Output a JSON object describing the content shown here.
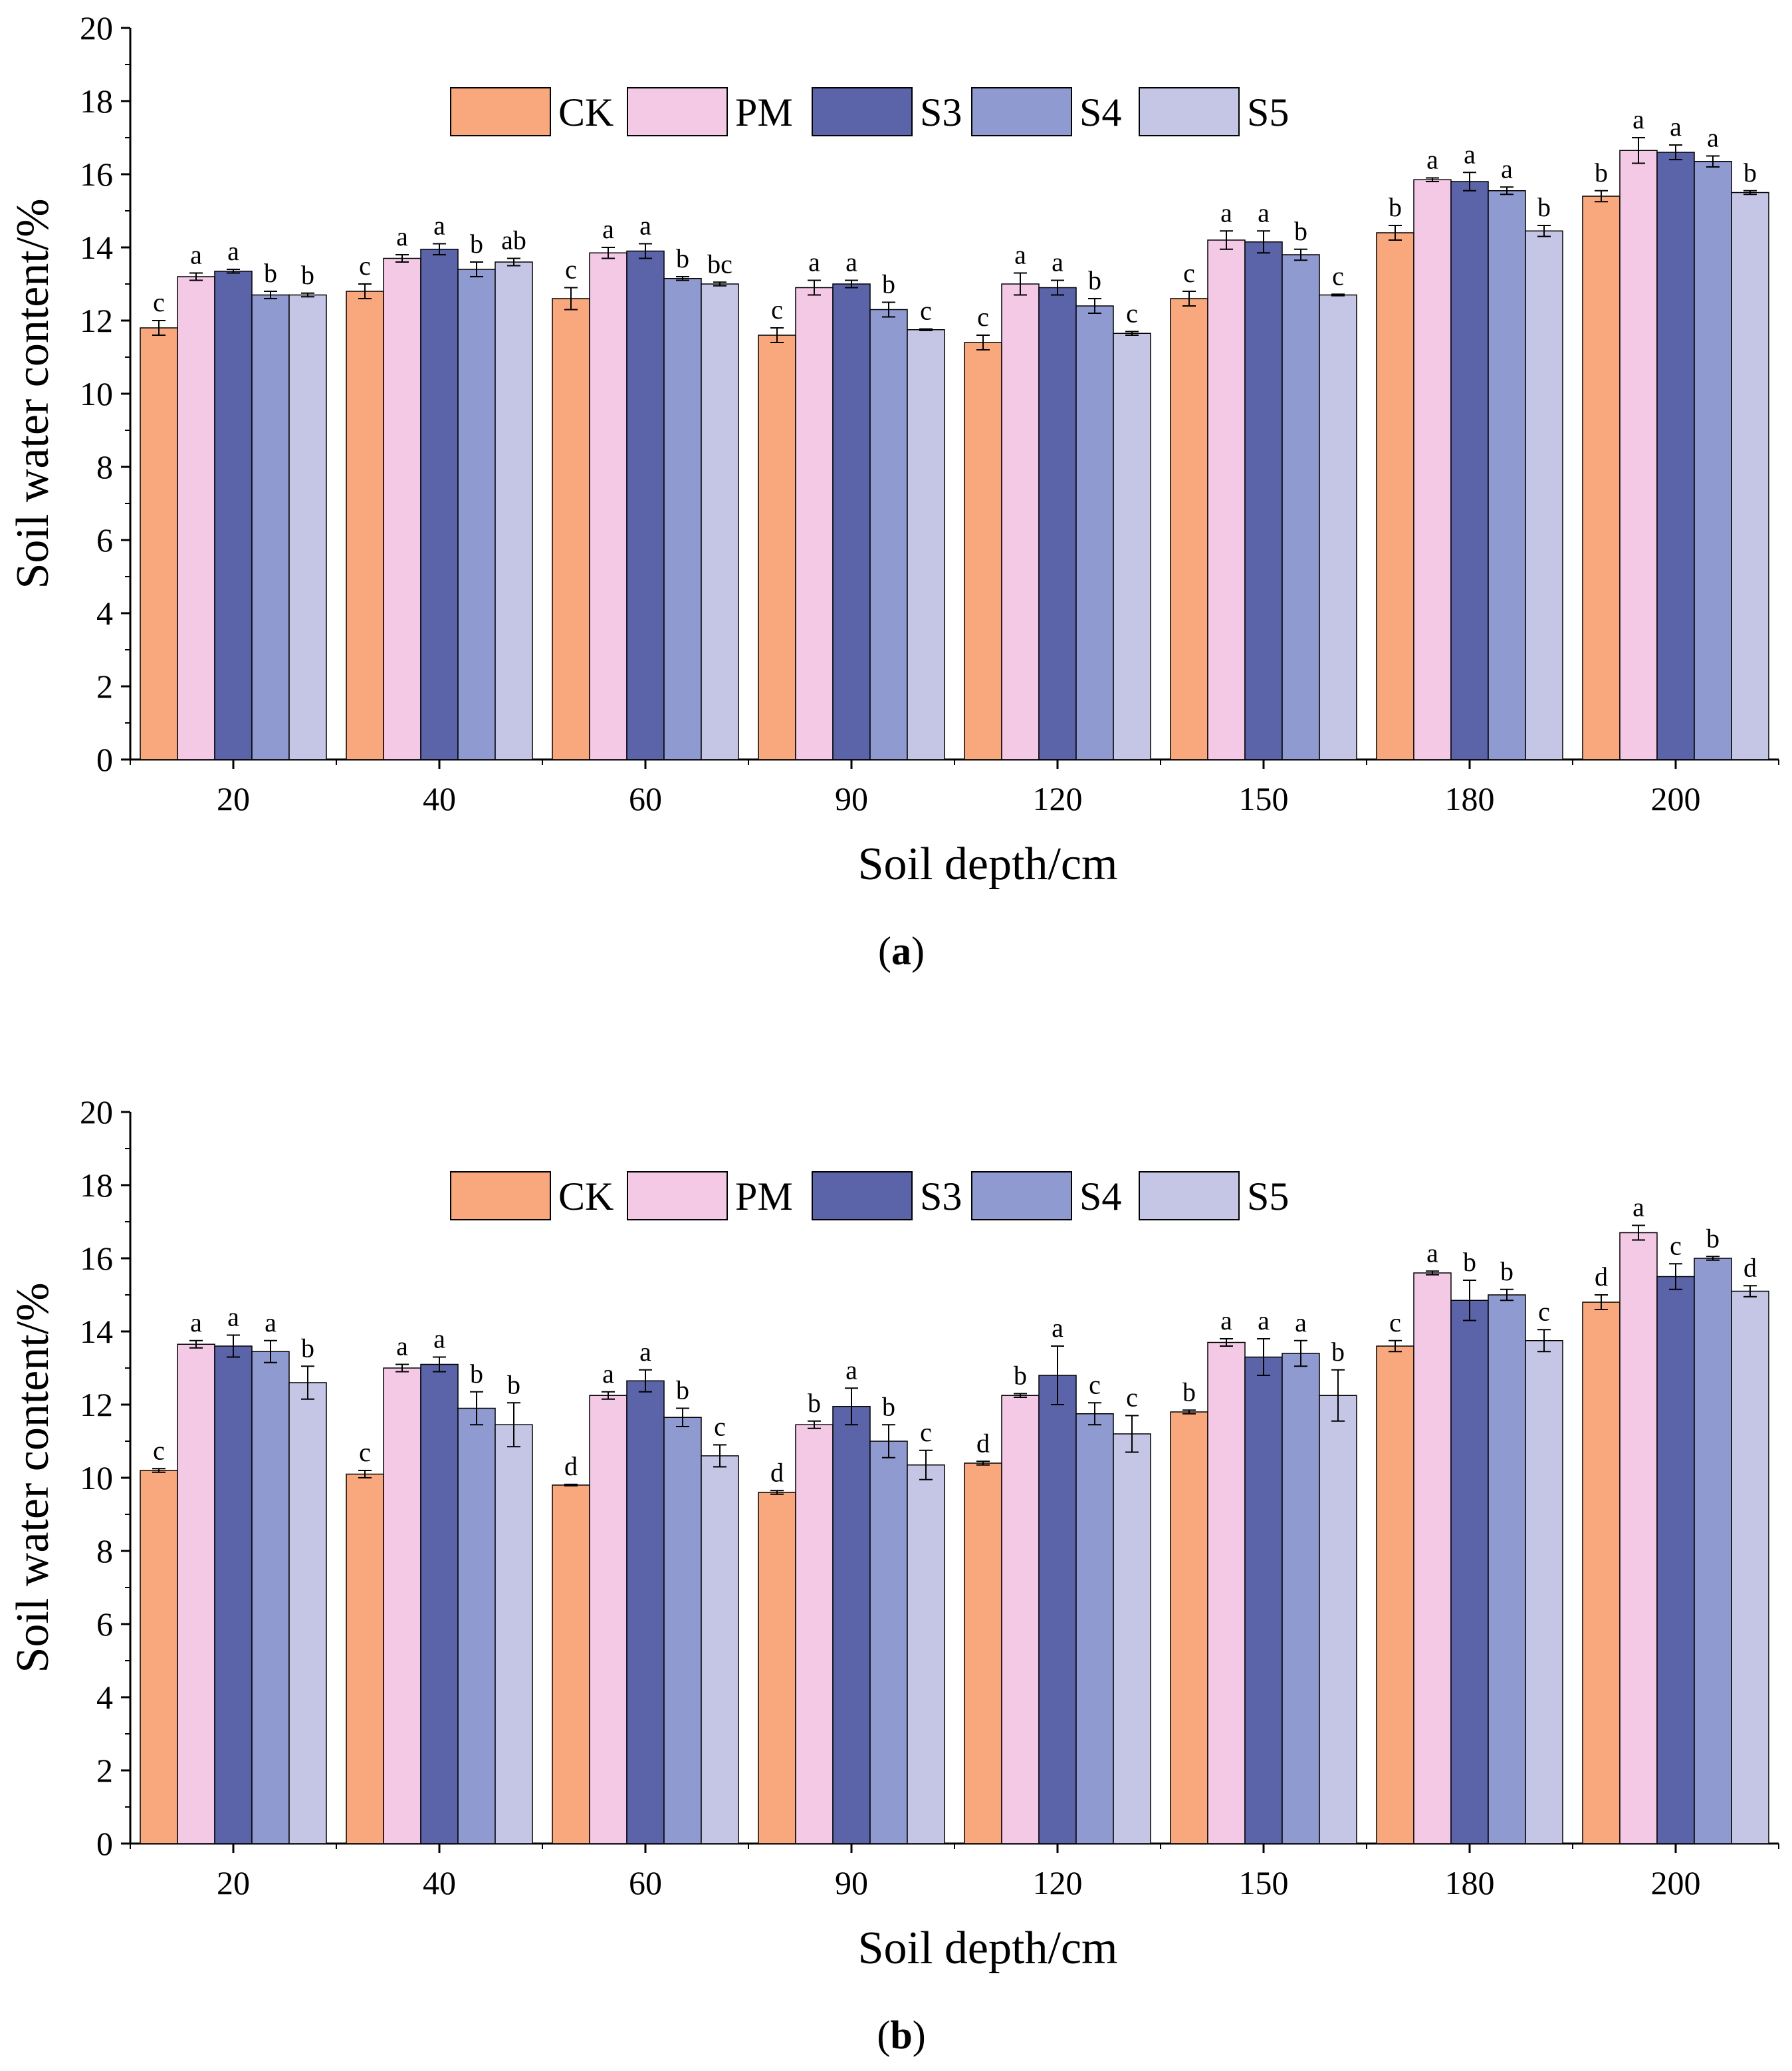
{
  "colors": {
    "CK": "#f9a87d",
    "PM": "#f4c9e6",
    "S3": "#5b63a9",
    "S4": "#8f9ad0",
    "S5": "#c5c5e5"
  },
  "chart_data": [
    {
      "type": "bar",
      "caption_label": "a",
      "xlabel": "Soil depth/cm",
      "ylabel": "Soil water content/%",
      "ylim": [
        0,
        20
      ],
      "yticks": [
        "0",
        "2",
        "4",
        "6",
        "8",
        "10",
        "12",
        "14",
        "16",
        "18",
        "20"
      ],
      "categories": [
        "20",
        "40",
        "60",
        "90",
        "120",
        "150",
        "180",
        "200"
      ],
      "legend_position": "top-center",
      "grid": false,
      "series": [
        {
          "name": "CK",
          "values": [
            11.8,
            12.8,
            12.6,
            11.6,
            11.4,
            12.6,
            14.4,
            15.4
          ],
          "errors": [
            0.2,
            0.2,
            0.3,
            0.2,
            0.2,
            0.2,
            0.2,
            0.15
          ],
          "labels": [
            "c",
            "c",
            "c",
            "c",
            "c",
            "c",
            "b",
            "b"
          ]
        },
        {
          "name": "PM",
          "values": [
            13.2,
            13.7,
            13.85,
            12.9,
            13.0,
            14.2,
            15.85,
            16.65
          ],
          "errors": [
            0.1,
            0.1,
            0.15,
            0.2,
            0.3,
            0.25,
            0.05,
            0.35
          ],
          "labels": [
            "a",
            "a",
            "a",
            "a",
            "a",
            "a",
            "a",
            "a"
          ]
        },
        {
          "name": "S3",
          "values": [
            13.35,
            13.95,
            13.9,
            13.0,
            12.9,
            14.15,
            15.8,
            16.6
          ],
          "errors": [
            0.05,
            0.15,
            0.2,
            0.1,
            0.2,
            0.3,
            0.25,
            0.2
          ],
          "labels": [
            "a",
            "a",
            "a",
            "a",
            "a",
            "a",
            "a",
            "a"
          ]
        },
        {
          "name": "S4",
          "values": [
            12.7,
            13.4,
            13.15,
            12.3,
            12.4,
            13.8,
            15.55,
            16.35
          ],
          "errors": [
            0.1,
            0.2,
            0.05,
            0.2,
            0.2,
            0.15,
            0.1,
            0.15
          ],
          "labels": [
            "b",
            "b",
            "b",
            "b",
            "b",
            "b",
            "a",
            "a"
          ]
        },
        {
          "name": "S5",
          "values": [
            12.7,
            13.6,
            13.0,
            11.75,
            11.65,
            12.7,
            14.45,
            15.5
          ],
          "errors": [
            0.05,
            0.1,
            0.05,
            0.02,
            0.05,
            0.02,
            0.15,
            0.05
          ],
          "labels": [
            "b",
            "ab",
            "bc",
            "c",
            "c",
            "c",
            "b",
            "b"
          ]
        }
      ]
    },
    {
      "type": "bar",
      "caption_label": "b",
      "xlabel": "Soil depth/cm",
      "ylabel": "Soil water content/%",
      "ylim": [
        0,
        20
      ],
      "yticks": [
        "0",
        "2",
        "4",
        "6",
        "8",
        "10",
        "12",
        "14",
        "16",
        "18",
        "20"
      ],
      "categories": [
        "20",
        "40",
        "60",
        "90",
        "120",
        "150",
        "180",
        "200"
      ],
      "legend_position": "top-center",
      "grid": false,
      "series": [
        {
          "name": "CK",
          "values": [
            10.2,
            10.1,
            9.8,
            9.6,
            10.4,
            11.8,
            13.6,
            14.8
          ],
          "errors": [
            0.05,
            0.1,
            0.02,
            0.05,
            0.05,
            0.05,
            0.15,
            0.2
          ],
          "labels": [
            "c",
            "c",
            "d",
            "d",
            "d",
            "b",
            "c",
            "d"
          ]
        },
        {
          "name": "PM",
          "values": [
            13.65,
            13.0,
            12.25,
            11.45,
            12.25,
            13.7,
            15.6,
            16.7
          ],
          "errors": [
            0.1,
            0.1,
            0.1,
            0.1,
            0.05,
            0.1,
            0.05,
            0.2
          ],
          "labels": [
            "a",
            "a",
            "a",
            "b",
            "b",
            "a",
            "a",
            "a"
          ]
        },
        {
          "name": "S3",
          "values": [
            13.6,
            13.1,
            12.65,
            11.95,
            12.8,
            13.3,
            14.85,
            15.5
          ],
          "errors": [
            0.3,
            0.2,
            0.3,
            0.5,
            0.8,
            0.5,
            0.55,
            0.35
          ],
          "labels": [
            "a",
            "a",
            "a",
            "a",
            "a",
            "a",
            "b",
            "c"
          ]
        },
        {
          "name": "S4",
          "values": [
            13.45,
            11.9,
            11.65,
            11.0,
            11.75,
            13.4,
            15.0,
            16.0
          ],
          "errors": [
            0.3,
            0.45,
            0.25,
            0.45,
            0.3,
            0.35,
            0.15,
            0.05
          ],
          "labels": [
            "a",
            "b",
            "b",
            "b",
            "c",
            "a",
            "b",
            "b"
          ]
        },
        {
          "name": "S5",
          "values": [
            12.6,
            11.45,
            10.6,
            10.35,
            11.2,
            12.25,
            13.75,
            15.1
          ],
          "errors": [
            0.45,
            0.6,
            0.3,
            0.4,
            0.5,
            0.7,
            0.3,
            0.15
          ],
          "labels": [
            "b",
            "b",
            "c",
            "c",
            "c",
            "b",
            "c",
            "d"
          ]
        }
      ]
    }
  ]
}
